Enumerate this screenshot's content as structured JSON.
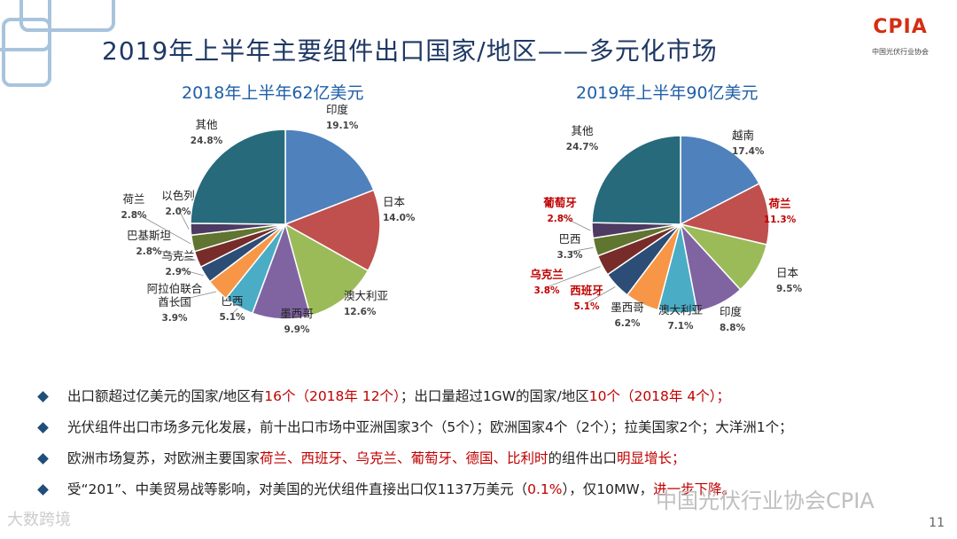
{
  "title": "2019年上半年主要组件出口国家/地区——多元化市场",
  "logo": {
    "text": "CPIA",
    "sub": "中国光伏行业协会"
  },
  "chart_data": [
    {
      "type": "pie",
      "title": "2018年上半年62亿美元",
      "slices": [
        {
          "name": "印度",
          "label": "19.1%",
          "value": 19.1,
          "color": "#4f81bd",
          "name_color": "#222222"
        },
        {
          "name": "日本",
          "label": "14.0%",
          "value": 14.0,
          "color": "#c0504d",
          "name_color": "#222222"
        },
        {
          "name": "澳大利亚",
          "label": "12.6%",
          "value": 12.6,
          "color": "#9bbb59",
          "name_color": "#222222"
        },
        {
          "name": "墨西哥",
          "label": "9.9%",
          "value": 9.9,
          "color": "#8064a2",
          "name_color": "#222222"
        },
        {
          "name": "巴西",
          "label": "5.1%",
          "value": 5.1,
          "color": "#4bacc6",
          "name_color": "#222222"
        },
        {
          "name": "阿拉伯联合酋长国",
          "label": "3.9%",
          "value": 3.9,
          "color": "#f79646",
          "name_color": "#222222"
        },
        {
          "name": "乌克兰",
          "label": "2.9%",
          "value": 2.9,
          "color": "#2c4d75",
          "name_color": "#222222"
        },
        {
          "name": "巴基斯坦",
          "label": "2.8%",
          "value": 2.8,
          "color": "#772c2a",
          "name_color": "#222222"
        },
        {
          "name": "荷兰",
          "label": "2.8%",
          "value": 2.8,
          "color": "#5f7530",
          "name_color": "#222222"
        },
        {
          "name": "以色列",
          "label": "2.0%",
          "value": 2.0,
          "color": "#4d3b62",
          "name_color": "#222222"
        },
        {
          "name": "其他",
          "label": "24.8%",
          "value": 24.8,
          "color": "#276a7c",
          "name_color": "#222222"
        }
      ]
    },
    {
      "type": "pie",
      "title": "2019年上半年90亿美元",
      "slices": [
        {
          "name": "越南",
          "label": "17.4%",
          "value": 17.4,
          "color": "#4f81bd",
          "name_color": "#222222"
        },
        {
          "name": "荷兰",
          "label": "11.3%",
          "value": 11.3,
          "color": "#c0504d",
          "name_color": "#c00000"
        },
        {
          "name": "日本",
          "label": "9.5%",
          "value": 9.5,
          "color": "#9bbb59",
          "name_color": "#222222"
        },
        {
          "name": "印度",
          "label": "8.8%",
          "value": 8.8,
          "color": "#8064a2",
          "name_color": "#222222"
        },
        {
          "name": "澳大利亚",
          "label": "7.1%",
          "value": 7.1,
          "color": "#4bacc6",
          "name_color": "#222222"
        },
        {
          "name": "墨西哥",
          "label": "6.2%",
          "value": 6.2,
          "color": "#f79646",
          "name_color": "#222222"
        },
        {
          "name": "西班牙",
          "label": "5.1%",
          "value": 5.1,
          "color": "#2c4d75",
          "name_color": "#c00000"
        },
        {
          "name": "乌克兰",
          "label": "3.8%",
          "value": 3.8,
          "color": "#772c2a",
          "name_color": "#c00000"
        },
        {
          "name": "巴西",
          "label": "3.3%",
          "value": 3.3,
          "color": "#5f7530",
          "name_color": "#222222"
        },
        {
          "name": "葡萄牙",
          "label": "2.8%",
          "value": 2.8,
          "color": "#4d3b62",
          "name_color": "#c00000"
        },
        {
          "name": "其他",
          "label": "24.7%",
          "value": 24.7,
          "color": "#276a7c",
          "name_color": "#222222"
        }
      ]
    }
  ],
  "bullets": [
    [
      {
        "t": "出口额超过亿美元的国家/地区有",
        "red": false
      },
      {
        "t": "16个（2018年 12个）",
        "red": true
      },
      {
        "t": "；出口量超过1GW的国家/地区",
        "red": false
      },
      {
        "t": "10个（2018年 4个）；",
        "red": true
      }
    ],
    [
      {
        "t": "光伏组件出口市场多元化发展，前十出口市场中亚洲国家3个（5个）；欧洲国家4个（2个）；拉美国家2个；大洋洲1个；",
        "red": false
      }
    ],
    [
      {
        "t": "欧洲市场复苏，对欧洲主要国家",
        "red": false
      },
      {
        "t": "荷兰、西班牙、乌克兰、葡萄牙、德国、比利时",
        "red": true
      },
      {
        "t": "的组件出口",
        "red": false
      },
      {
        "t": "明显增长；",
        "red": true
      }
    ],
    [
      {
        "t": "受“201”、中美贸易战等影响，对美国的光伏组件直接出口仅1137万美元（",
        "red": false
      },
      {
        "t": "0.1%",
        "red": true
      },
      {
        "t": "），仅10MW，",
        "red": false
      },
      {
        "t": "进一步下降。",
        "red": true
      }
    ]
  ],
  "watermark": "中国光伏行业协会CPIA",
  "watermark2": "大数跨境",
  "page_number": "11"
}
